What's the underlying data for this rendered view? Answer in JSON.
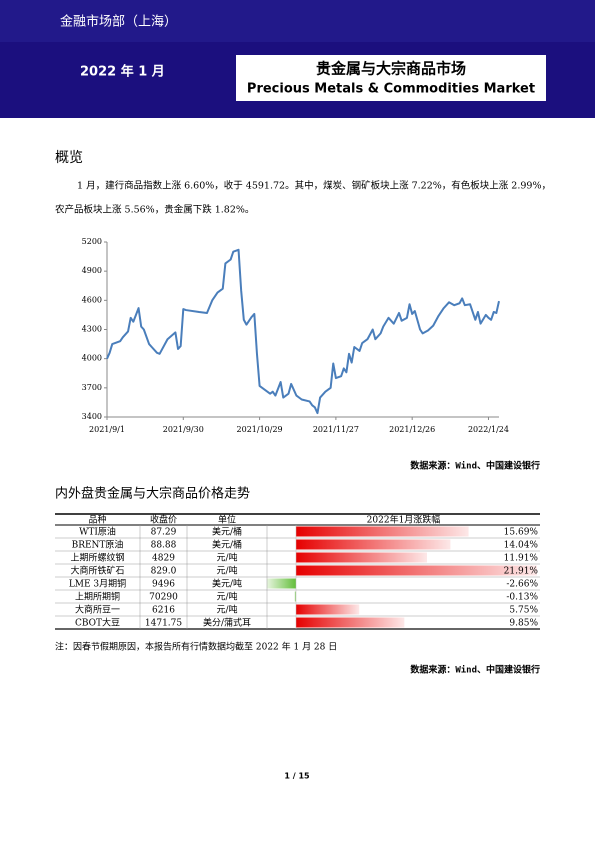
{
  "header": {
    "department": "金融市场部（上海）",
    "date": "2022 年 1 月",
    "title_cn": "贵金属与大宗商品市场",
    "title_en": "Precious Metals & Commodities Market"
  },
  "section1": {
    "heading": "概览",
    "paragraph_line1": "1 月，建行商品指数上涨 6.60%，收于 4591.72。其中，煤炭、钢矿板块上涨 7.22%，有色板块上涨 2.99%，",
    "paragraph_line2": "农产品板块上涨 5.56%，贵金属下跌 1.82%。",
    "source": "数据来源：Wind、中国建设银行"
  },
  "chart_data": {
    "type": "line",
    "color": "#4a7ebb",
    "x": [
      "2021/9/1",
      "2021/9/2",
      "2021/9/3",
      "2021/9/6",
      "2021/9/7",
      "2021/9/9",
      "2021/9/10",
      "2021/9/11",
      "2021/9/13",
      "2021/9/14",
      "2021/9/15",
      "2021/9/17",
      "2021/9/18",
      "2021/9/20",
      "2021/9/21",
      "2021/9/24",
      "2021/9/27",
      "2021/9/28",
      "2021/9/29",
      "2021/9/30",
      "2021/10/1",
      "2021/10/6",
      "2021/10/9",
      "2021/10/11",
      "2021/10/13",
      "2021/10/15",
      "2021/10/16",
      "2021/10/18",
      "2021/10/19",
      "2021/10/21",
      "2021/10/22",
      "2021/10/23",
      "2021/10/24",
      "2021/10/26",
      "2021/10/27",
      "2021/10/28",
      "2021/10/29",
      "2021/10/31",
      "2021/11/2",
      "2021/11/3",
      "2021/11/4",
      "2021/11/6",
      "2021/11/7",
      "2021/11/9",
      "2021/11/10",
      "2021/11/12",
      "2021/11/14",
      "2021/11/17",
      "2021/11/18",
      "2021/11/19",
      "2021/11/20",
      "2021/11/21",
      "2021/11/23",
      "2021/11/25",
      "2021/11/26",
      "2021/11/27",
      "2021/11/29",
      "2021/11/30",
      "2021/12/1",
      "2021/12/2",
      "2021/12/3",
      "2021/12/4",
      "2021/12/6",
      "2021/12/7",
      "2021/12/9",
      "2021/12/11",
      "2021/12/12",
      "2021/12/14",
      "2021/12/15",
      "2021/12/17",
      "2021/12/19",
      "2021/12/21",
      "2021/12/22",
      "2021/12/24",
      "2021/12/25",
      "2021/12/26",
      "2021/12/27",
      "2021/12/29",
      "2021/12/30",
      "2022/1/1",
      "2022/1/3",
      "2022/1/5",
      "2022/1/7",
      "2022/1/9",
      "2022/1/11",
      "2022/1/13",
      "2022/1/14",
      "2022/1/15",
      "2022/1/17",
      "2022/1/19",
      "2022/1/20",
      "2022/1/21",
      "2022/1/23",
      "2022/1/24",
      "2022/1/25",
      "2022/1/26",
      "2022/1/27",
      "2022/1/28"
    ],
    "values": [
      4000,
      4060,
      4150,
      4180,
      4220,
      4280,
      4420,
      4380,
      4520,
      4330,
      4300,
      4150,
      4120,
      4060,
      4050,
      4200,
      4270,
      4100,
      4130,
      4510,
      4500,
      4480,
      4470,
      4600,
      4680,
      4720,
      4980,
      5020,
      5100,
      5120,
      4700,
      4400,
      4350,
      4430,
      4460,
      4050,
      3720,
      3680,
      3640,
      3660,
      3620,
      3760,
      3600,
      3640,
      3740,
      3620,
      3580,
      3560,
      3520,
      3500,
      3440,
      3600,
      3660,
      3700,
      3950,
      3800,
      3820,
      3900,
      3860,
      4050,
      3960,
      4120,
      4080,
      4160,
      4200,
      4300,
      4200,
      4260,
      4330,
      4420,
      4360,
      4470,
      4390,
      4420,
      4560,
      4460,
      4490,
      4300,
      4260,
      4290,
      4340,
      4440,
      4520,
      4580,
      4550,
      4570,
      4620,
      4550,
      4560,
      4400,
      4480,
      4360,
      4450,
      4420,
      4400,
      4480,
      4470,
      4591.72
    ],
    "xlim": [
      "2021/9/1",
      "2022/1/28"
    ],
    "xticks": [
      "2021/9/1",
      "2021/9/30",
      "2021/10/29",
      "2021/11/27",
      "2021/12/26",
      "2022/1/24"
    ],
    "ylim": [
      3400,
      5200
    ],
    "yticks": [
      3400,
      3700,
      4000,
      4300,
      4600,
      4900,
      5200
    ]
  },
  "section2": {
    "heading": "内外盘贵金属与大宗商品价格走势",
    "table": {
      "columns": [
        "品种",
        "收盘价",
        "单位",
        "2022年1月涨跌幅"
      ],
      "rows": [
        {
          "name": "WTI原油",
          "close": "87.29",
          "unit": "美元/桶",
          "change": 15.69,
          "change_label": "15.69%"
        },
        {
          "name": "BRENT原油",
          "close": "88.88",
          "unit": "美元/桶",
          "change": 14.04,
          "change_label": "14.04%"
        },
        {
          "name": "上期所螺纹钢",
          "close": "4829",
          "unit": "元/吨",
          "change": 11.91,
          "change_label": "11.91%"
        },
        {
          "name": "大商所铁矿石",
          "close": "829.0",
          "unit": "元/吨",
          "change": 21.91,
          "change_label": "21.91%"
        },
        {
          "name": "LME 3月期铜",
          "close": "9496",
          "unit": "美元/吨",
          "change": -2.66,
          "change_label": "-2.66%"
        },
        {
          "name": "上期所期铜",
          "close": "70290",
          "unit": "元/吨",
          "change": -0.13,
          "change_label": "-0.13%"
        },
        {
          "name": "大商所豆一",
          "close": "6216",
          "unit": "元/吨",
          "change": 5.75,
          "change_label": "5.75%"
        },
        {
          "name": "CBOT大豆",
          "close": "1471.75",
          "unit": "美分/蒲式耳",
          "change": 9.85,
          "change_label": "9.85%"
        }
      ]
    },
    "note": "注：因春节假期原因，本报告所有行情数据均截至 2022 年 1 月 28 日",
    "source": "数据来源：Wind、中国建设银行"
  },
  "footer": {
    "page": "1 / 15"
  }
}
